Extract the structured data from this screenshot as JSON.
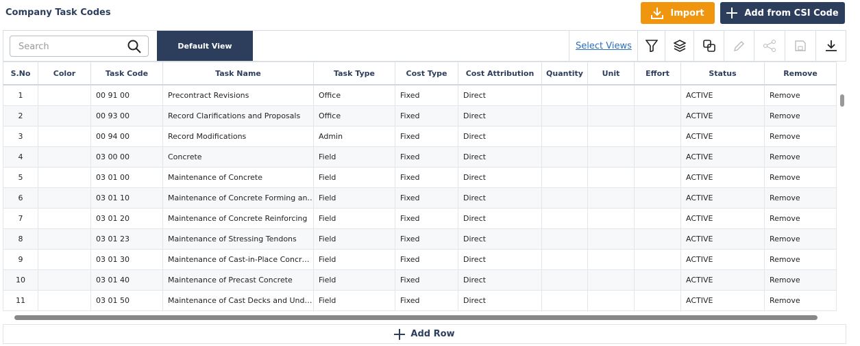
{
  "header": {
    "title": "Company Task Codes",
    "import": "Import",
    "add_csi": "Add from CSI Code"
  },
  "toolbar": {
    "search_placeholder": "Search",
    "view": "Default View",
    "select_views": "Select Views"
  },
  "table": {
    "columns": [
      "S.No",
      "Color",
      "Task Code",
      "Task Name",
      "Task Type",
      "Cost Type",
      "Cost Attribution",
      "Quantity",
      "Unit",
      "Effort",
      "Status",
      "Remove"
    ],
    "remove_label": "Remove",
    "rows": [
      {
        "sno": "1",
        "color": "#bde41e",
        "task_code": "00 91 00",
        "task_name": "Precontract Revisions",
        "task_type": "Office",
        "cost_type": "Fixed",
        "cost_attribution": "Direct",
        "status": "ACTIVE"
      },
      {
        "sno": "2",
        "color": "#e2704f",
        "task_code": "00 93 00",
        "task_name": "Record Clarifications and Proposals",
        "task_type": "Office",
        "cost_type": "Fixed",
        "cost_attribution": "Direct",
        "status": "ACTIVE"
      },
      {
        "sno": "3",
        "color": "#54b024",
        "task_code": "00 94 00",
        "task_name": "Record Modifications",
        "task_type": "Admin",
        "cost_type": "Fixed",
        "cost_attribution": "Direct",
        "status": "ACTIVE"
      },
      {
        "sno": "4",
        "color": "#efd624",
        "task_code": "03 00 00",
        "task_name": "Concrete",
        "task_type": "Field",
        "cost_type": "Fixed",
        "cost_attribution": "Direct",
        "status": "ACTIVE"
      },
      {
        "sno": "5",
        "color": "#e8951d",
        "task_code": "03 01 00",
        "task_name": "Maintenance of Concrete",
        "task_type": "Field",
        "cost_type": "Fixed",
        "cost_attribution": "Direct",
        "status": "ACTIVE"
      },
      {
        "sno": "6",
        "color": "#a3208c",
        "task_code": "03 01 10",
        "task_name": "Maintenance of Concrete Forming an…",
        "task_type": "Field",
        "cost_type": "Fixed",
        "cost_attribution": "Direct",
        "status": "ACTIVE"
      },
      {
        "sno": "7",
        "color": "#d72222",
        "task_code": "03 01 20",
        "task_name": "Maintenance of Concrete Reinforcing",
        "task_type": "Field",
        "cost_type": "Fixed",
        "cost_attribution": "Direct",
        "status": "ACTIVE"
      },
      {
        "sno": "8",
        "color": "#7a7a7a",
        "task_code": "03 01 23",
        "task_name": "Maintenance of Stressing Tendons",
        "task_type": "Field",
        "cost_type": "Fixed",
        "cost_attribution": "Direct",
        "status": "ACTIVE"
      },
      {
        "sno": "9",
        "color": "#1e90ef",
        "task_code": "03 01 30",
        "task_name": "Maintenance of Cast-in-Place Concr…",
        "task_type": "Field",
        "cost_type": "Fixed",
        "cost_attribution": "Direct",
        "status": "ACTIVE"
      },
      {
        "sno": "10",
        "color": "#6a8a30",
        "task_code": "03 01 40",
        "task_name": "Maintenance of Precast Concrete",
        "task_type": "Field",
        "cost_type": "Fixed",
        "cost_attribution": "Direct",
        "status": "ACTIVE"
      },
      {
        "sno": "11",
        "color": "#52b025",
        "task_code": "03 01 50",
        "task_name": "Maintenance of Cast Decks and Und…",
        "task_type": "Field",
        "cost_type": "Fixed",
        "cost_attribution": "Direct",
        "status": "ACTIVE"
      }
    ]
  },
  "footer": {
    "add_row": "Add Row"
  }
}
